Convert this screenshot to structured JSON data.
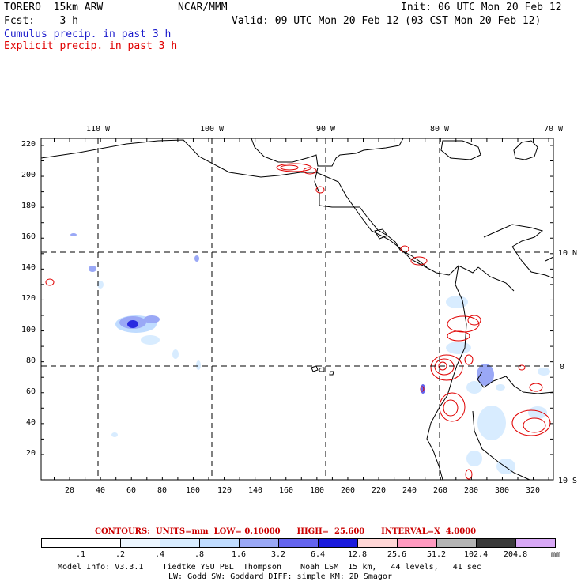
{
  "header": {
    "model": "TORERO  15km ARW",
    "org": "NCAR/MMM",
    "init": "Init: 06 UTC Mon 20 Feb 12",
    "fcst": "Fcst:    3 h",
    "valid": "Valid: 09 UTC Mon 20 Feb 12 (03 CST Mon 20 Feb 12)",
    "cumulus": "Cumulus precip. in past 3 h",
    "explicit": "Explicit precip. in past 3 h"
  },
  "map": {
    "lon_labels": [
      "110 W",
      "100 W",
      "90 W",
      "80 W",
      "70 W"
    ],
    "lat_labels": [
      "10 N",
      "0",
      "10 S"
    ],
    "x_ticks": [
      "20",
      "40",
      "60",
      "80",
      "100",
      "120",
      "140",
      "160",
      "180",
      "200",
      "220",
      "240",
      "260",
      "280",
      "300",
      "320"
    ],
    "y_ticks": [
      "220",
      "200",
      "180",
      "160",
      "140",
      "120",
      "100",
      "80",
      "60",
      "40",
      "20"
    ]
  },
  "contours": {
    "label": "CONTOURS:  UNITS=mm  LOW= 0.10000      HIGH=  25.600      INTERVAL=X  4.0000"
  },
  "legend": {
    "values": [
      ".1",
      ".2",
      ".4",
      ".8",
      "1.6",
      "3.2",
      "6.4",
      "12.8",
      "25.6",
      "51.2",
      "102.4",
      "204.8"
    ],
    "unit": "mm",
    "colors": [
      "#ffffff",
      "#ffffff",
      "#ecf6ff",
      "#d8ecff",
      "#c0dcff",
      "#9aa8f6",
      "#6464ee",
      "#1a1adc",
      "#ffd6d6",
      "#ff9ac0",
      "#b4b4b4",
      "#3a3a3a",
      "#d8a8f6"
    ]
  },
  "footer": {
    "line1": "Model Info: V3.3.1    Tiedtke YSU PBL  Thompson    Noah LSM  15 km,   44 levels,   41 sec",
    "line2": "LW: Godd SW: Goddard DIFF: simple KM: 2D Smagor"
  },
  "colors": {
    "cumulus": "#1a1acc",
    "explicit": "#e00000",
    "precip_light": "#d8ecff",
    "precip_mid": "#9aa8f6",
    "precip_heavy": "#2a2ae0"
  }
}
